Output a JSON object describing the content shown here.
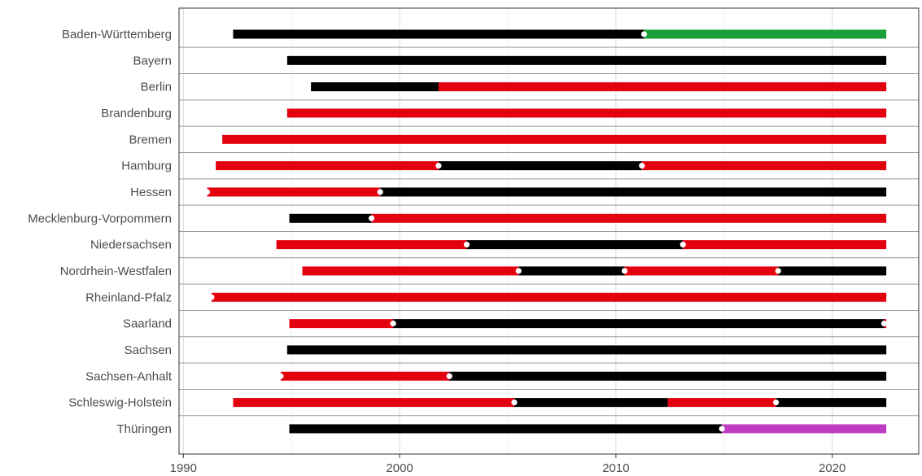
{
  "chart_data": {
    "type": "timeline",
    "xlim": [
      1989.8,
      2024.0
    ],
    "x_ticks": [
      1990,
      2000,
      2010,
      2020
    ],
    "x_tick_labels": [
      "1990",
      "2000",
      "2010",
      "2020"
    ],
    "grid": true,
    "colors": {
      "black": "#000000",
      "red": "#e3000f",
      "green": "#1aa037",
      "purple": "#be3cc0",
      "marker": "#ffffff"
    },
    "rows": [
      {
        "label": "Baden-Württemberg",
        "segments": [
          {
            "start": 1992.3,
            "end": 2011.3,
            "color": "black"
          },
          {
            "start": 2011.3,
            "end": 2022.5,
            "color": "green"
          }
        ],
        "markers": [
          2011.3
        ]
      },
      {
        "label": "Bayern",
        "segments": [
          {
            "start": 1994.8,
            "end": 2022.5,
            "color": "black"
          }
        ],
        "markers": []
      },
      {
        "label": "Berlin",
        "segments": [
          {
            "start": 1995.9,
            "end": 2001.8,
            "color": "black"
          },
          {
            "start": 2001.8,
            "end": 2022.5,
            "color": "red"
          }
        ],
        "markers": []
      },
      {
        "label": "Brandenburg",
        "segments": [
          {
            "start": 1994.8,
            "end": 2022.5,
            "color": "red"
          }
        ],
        "markers": []
      },
      {
        "label": "Bremen",
        "segments": [
          {
            "start": 1991.8,
            "end": 2022.5,
            "color": "red"
          }
        ],
        "markers": []
      },
      {
        "label": "Hamburg",
        "segments": [
          {
            "start": 1991.5,
            "end": 2001.8,
            "color": "red"
          },
          {
            "start": 2001.8,
            "end": 2011.2,
            "color": "black"
          },
          {
            "start": 2011.2,
            "end": 2022.5,
            "color": "red"
          }
        ],
        "markers": [
          2001.8,
          2011.2
        ]
      },
      {
        "label": "Hessen",
        "segments": [
          {
            "start": 1991.1,
            "end": 1999.1,
            "color": "red"
          },
          {
            "start": 1999.1,
            "end": 2022.5,
            "color": "black"
          }
        ],
        "markers": [
          1991.1,
          1999.1
        ]
      },
      {
        "label": "Mecklenburg-Vorpommern",
        "segments": [
          {
            "start": 1994.9,
            "end": 1998.7,
            "color": "black"
          },
          {
            "start": 1998.7,
            "end": 2022.5,
            "color": "red"
          }
        ],
        "markers": [
          1998.7
        ]
      },
      {
        "label": "Niedersachsen",
        "segments": [
          {
            "start": 1994.3,
            "end": 2003.1,
            "color": "red"
          },
          {
            "start": 2003.1,
            "end": 2013.1,
            "color": "black"
          },
          {
            "start": 2013.1,
            "end": 2022.5,
            "color": "red"
          }
        ],
        "markers": [
          2003.1,
          2013.1
        ]
      },
      {
        "label": "Nordrhein-Westfalen",
        "segments": [
          {
            "start": 1995.5,
            "end": 2005.5,
            "color": "red"
          },
          {
            "start": 2005.5,
            "end": 2010.4,
            "color": "black"
          },
          {
            "start": 2010.4,
            "end": 2017.5,
            "color": "red"
          },
          {
            "start": 2017.5,
            "end": 2022.5,
            "color": "black"
          }
        ],
        "markers": [
          2005.5,
          2010.4,
          2017.5
        ]
      },
      {
        "label": "Rheinland-Pfalz",
        "segments": [
          {
            "start": 1991.3,
            "end": 2022.5,
            "color": "red"
          }
        ],
        "markers": [
          1991.3
        ]
      },
      {
        "label": "Saarland",
        "segments": [
          {
            "start": 1994.9,
            "end": 1999.7,
            "color": "red"
          },
          {
            "start": 1999.7,
            "end": 2022.4,
            "color": "black"
          },
          {
            "start": 2022.4,
            "end": 2022.5,
            "color": "red"
          }
        ],
        "markers": [
          1999.7,
          2022.4
        ]
      },
      {
        "label": "Sachsen",
        "segments": [
          {
            "start": 1994.8,
            "end": 2022.5,
            "color": "black"
          }
        ],
        "markers": []
      },
      {
        "label": "Sachsen-Anhalt",
        "segments": [
          {
            "start": 1994.5,
            "end": 2002.3,
            "color": "red"
          },
          {
            "start": 2002.3,
            "end": 2022.5,
            "color": "black"
          }
        ],
        "markers": [
          1994.5,
          2002.3
        ]
      },
      {
        "label": "Schleswig-Holstein",
        "segments": [
          {
            "start": 1992.3,
            "end": 2005.3,
            "color": "red"
          },
          {
            "start": 2005.3,
            "end": 2012.4,
            "color": "black"
          },
          {
            "start": 2012.4,
            "end": 2017.4,
            "color": "red"
          },
          {
            "start": 2017.4,
            "end": 2022.5,
            "color": "black"
          }
        ],
        "markers": [
          2005.3,
          2017.4
        ]
      },
      {
        "label": "Thüringen",
        "segments": [
          {
            "start": 1994.9,
            "end": 2014.9,
            "color": "black"
          },
          {
            "start": 2014.9,
            "end": 2022.5,
            "color": "purple"
          }
        ],
        "markers": [
          2014.9
        ]
      }
    ]
  }
}
